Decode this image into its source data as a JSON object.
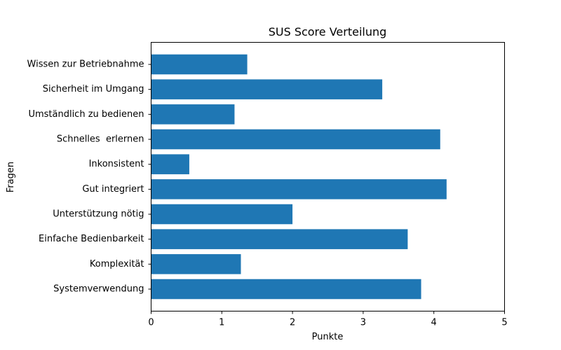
{
  "chart_data": {
    "type": "bar",
    "orientation": "horizontal",
    "title": "SUS Score Verteilung",
    "xlabel": "Punkte",
    "ylabel": "Fragen",
    "xlim": [
      0,
      5
    ],
    "xticks": [
      "0",
      "1",
      "2",
      "3",
      "4",
      "5"
    ],
    "grid": false,
    "bar_color": "#1f77b4",
    "categories": [
      "Systemverwendung",
      "Komplexität",
      "Einfache Bedienbarkeit",
      "Unterstützung nötig",
      "Gut integriert",
      "Inkonsistent",
      "Schnelles  erlernen",
      "Umständlich zu bedienen",
      "Sicherheit im Umgang",
      "Wissen zur Betriebnahme"
    ],
    "values": [
      3.82,
      1.27,
      3.63,
      2.0,
      4.18,
      0.54,
      4.09,
      1.18,
      3.27,
      1.36
    ]
  }
}
